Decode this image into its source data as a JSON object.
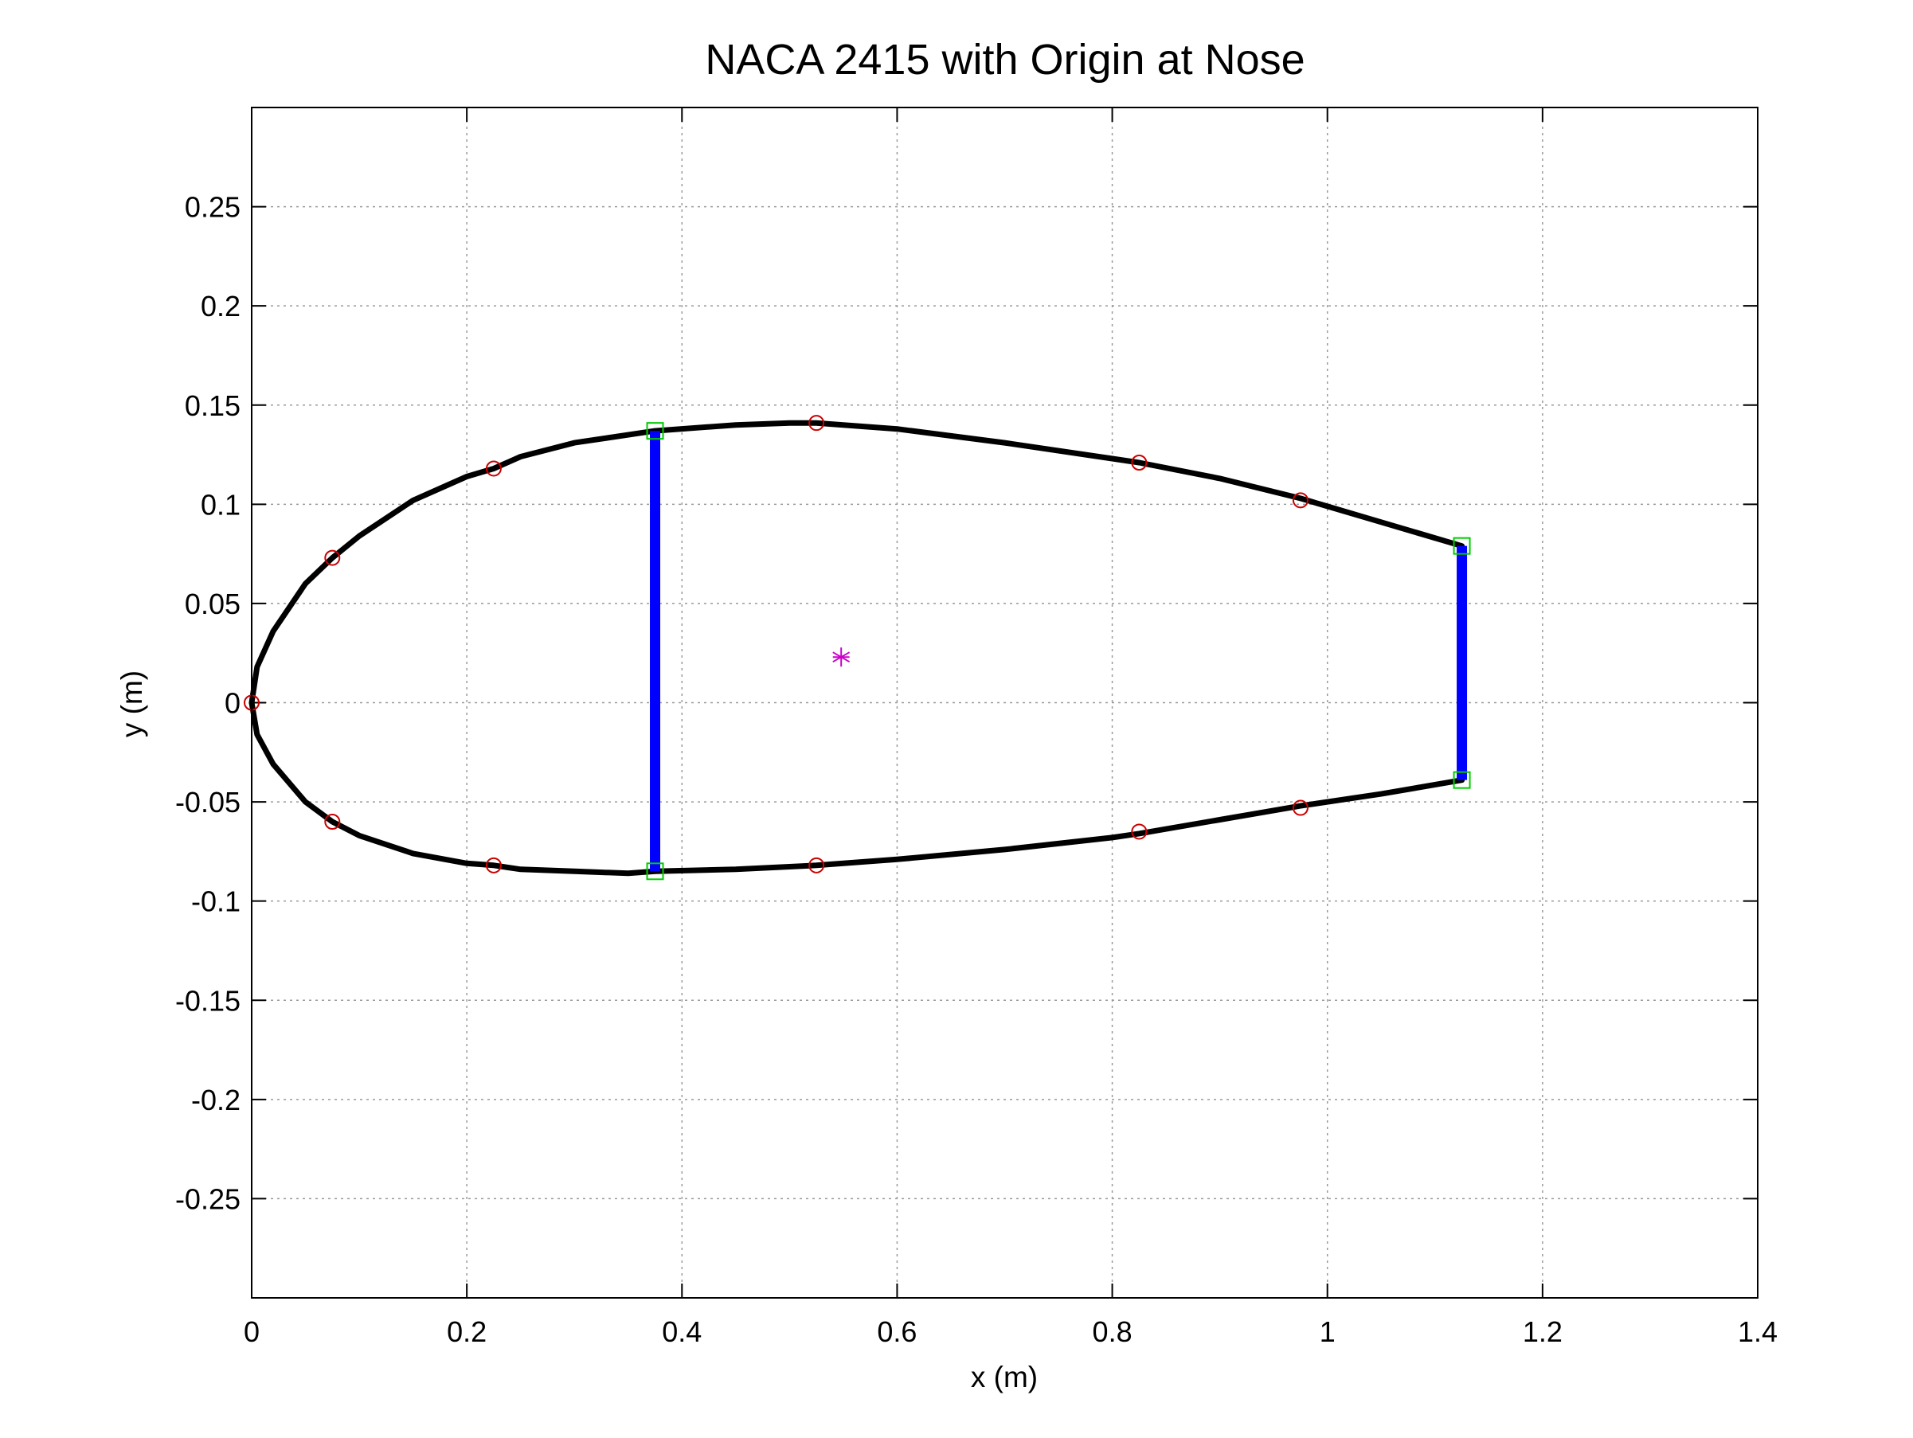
{
  "chart_data": {
    "type": "line",
    "title": "NACA 2415 with Origin at Nose",
    "xlabel": "x (m)",
    "ylabel": "y (m)",
    "xlim": [
      0,
      1.4
    ],
    "ylim": [
      -0.3,
      0.3
    ],
    "grid": true,
    "x_ticks": [
      0,
      0.2,
      0.4,
      0.6,
      0.8,
      1,
      1.2,
      1.4
    ],
    "x_tick_labels": [
      "0",
      "0.2",
      "0.4",
      "0.6",
      "0.8",
      "1",
      "1.2",
      "1.4"
    ],
    "y_ticks": [
      -0.25,
      -0.2,
      -0.15,
      -0.1,
      -0.05,
      0,
      0.05,
      0.1,
      0.15,
      0.2,
      0.25
    ],
    "y_tick_labels": [
      "-0.25",
      "-0.2",
      "-0.15",
      "-0.1",
      "-0.05",
      "0",
      "0.05",
      "0.1",
      "0.15",
      "0.2",
      "0.25"
    ],
    "colors": {
      "profile": "#000000",
      "spars": "#0000ff",
      "stringers": "#cc0000",
      "spar_caps": "#00cc00",
      "centroid": "#cc00cc",
      "grid": "#9a9a9a"
    },
    "series": [
      {
        "marker": "line",
        "x": [
          0,
          0.005,
          0.02,
          0.05,
          0.075,
          0.1,
          0.15,
          0.2,
          0.225,
          0.25,
          0.3,
          0.375,
          0.45,
          0.5,
          0.525,
          0.6,
          0.7,
          0.8,
          0.825,
          0.9,
          0.975,
          1.05,
          1.125
        ],
        "y": [
          0,
          0.018,
          0.036,
          0.06,
          0.073,
          0.084,
          0.102,
          0.114,
          0.118,
          0.124,
          0.131,
          0.137,
          0.14,
          0.141,
          0.141,
          0.138,
          0.131,
          0.123,
          0.121,
          0.113,
          0.103,
          0.091,
          0.079
        ]
      },
      {
        "marker": "line",
        "x": [
          0,
          0.005,
          0.02,
          0.05,
          0.075,
          0.1,
          0.15,
          0.2,
          0.225,
          0.25,
          0.3,
          0.35,
          0.375,
          0.45,
          0.525,
          0.6,
          0.7,
          0.8,
          0.825,
          0.9,
          0.975,
          1.05,
          1.125
        ],
        "y": [
          0,
          -0.016,
          -0.031,
          -0.05,
          -0.06,
          -0.067,
          -0.076,
          -0.081,
          -0.082,
          -0.084,
          -0.085,
          -0.086,
          -0.085,
          -0.084,
          -0.082,
          -0.079,
          -0.074,
          -0.068,
          -0.066,
          -0.059,
          -0.052,
          -0.046,
          -0.039
        ]
      },
      {
        "marker": "spar",
        "segments": [
          {
            "x": [
              0.375,
              0.375
            ],
            "y": [
              0.137,
              -0.085
            ]
          },
          {
            "x": [
              1.125,
              1.125
            ],
            "y": [
              0.079,
              -0.039
            ]
          }
        ]
      },
      {
        "marker": "circle",
        "x": [
          0,
          0.075,
          0.225,
          0.525,
          0.825,
          0.975,
          0.075,
          0.225,
          0.525,
          0.825,
          0.975
        ],
        "y": [
          0,
          0.073,
          0.118,
          0.141,
          0.121,
          0.102,
          -0.06,
          -0.082,
          -0.082,
          -0.065,
          -0.053
        ]
      },
      {
        "marker": "square",
        "x": [
          0.375,
          0.375,
          1.125,
          1.125
        ],
        "y": [
          0.137,
          -0.085,
          0.079,
          -0.039
        ]
      },
      {
        "marker": "asterisk",
        "x": [
          0.548
        ],
        "y": [
          0.023
        ]
      }
    ]
  }
}
